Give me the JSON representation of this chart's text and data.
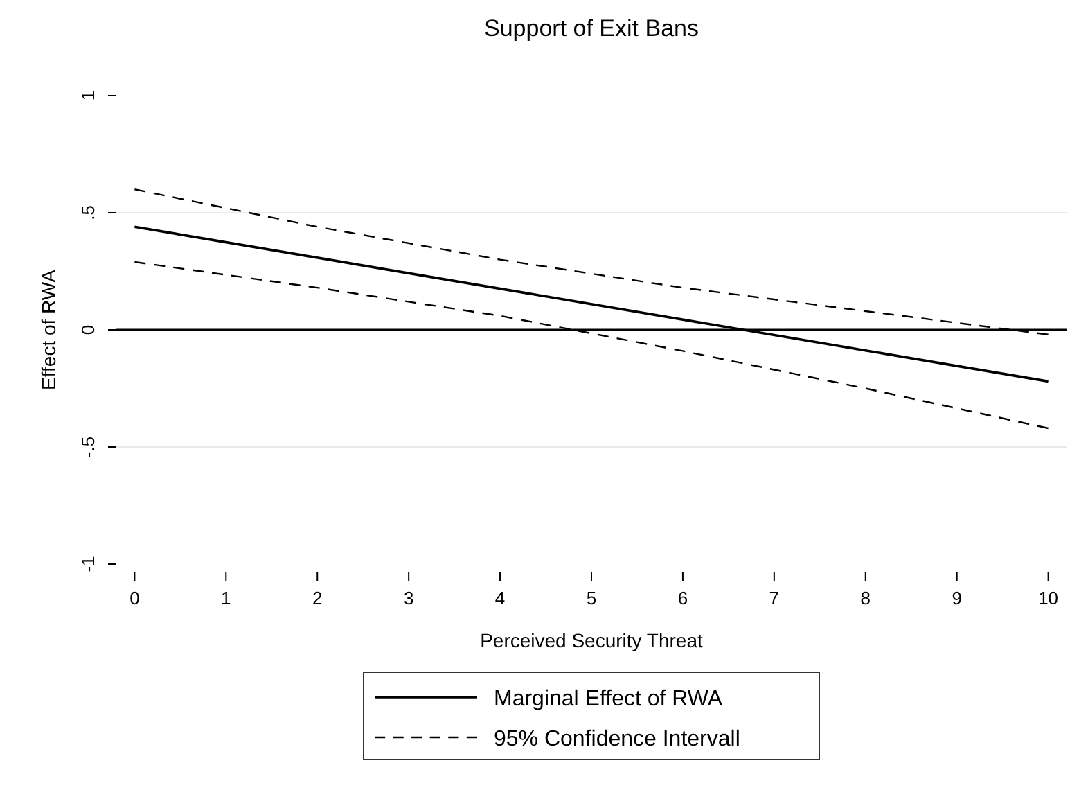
{
  "chart_data": {
    "type": "line",
    "title": "Support of Exit Bans",
    "xlabel": "Perceived Security Threat",
    "ylabel": "Effect of RWA",
    "x": [
      0,
      2,
      4,
      6,
      8,
      10
    ],
    "series": [
      {
        "name": "Marginal Effect of RWA",
        "color": "#000000",
        "line_style": "solid",
        "x": [
          0,
          10
        ],
        "values": [
          0.44,
          -0.22
        ]
      },
      {
        "name": "95% Confidence Intervall",
        "color": "#000000",
        "line_style": "dashed",
        "values": [
          0.6,
          0.44,
          0.3,
          0.18,
          0.08,
          -0.02
        ]
      },
      {
        "color": "#000000",
        "line_style": "dashed",
        "values": [
          0.29,
          0.18,
          0.06,
          -0.09,
          -0.25,
          -0.42
        ]
      }
    ],
    "xlim": [
      -0.2,
      10.2
    ],
    "ylim": [
      -1,
      1
    ],
    "xticks": [
      0,
      1,
      2,
      3,
      4,
      5,
      6,
      7,
      8,
      9,
      10
    ],
    "yticks": [
      -1,
      {
        "value": -0.5,
        "label": "-.5"
      },
      0,
      {
        "value": 0.5,
        "label": ".5"
      },
      1
    ],
    "grid": "y",
    "legend": "bottom",
    "ref_lines": [
      {
        "axis": "y",
        "value": 0,
        "color": "#000000"
      }
    ]
  }
}
